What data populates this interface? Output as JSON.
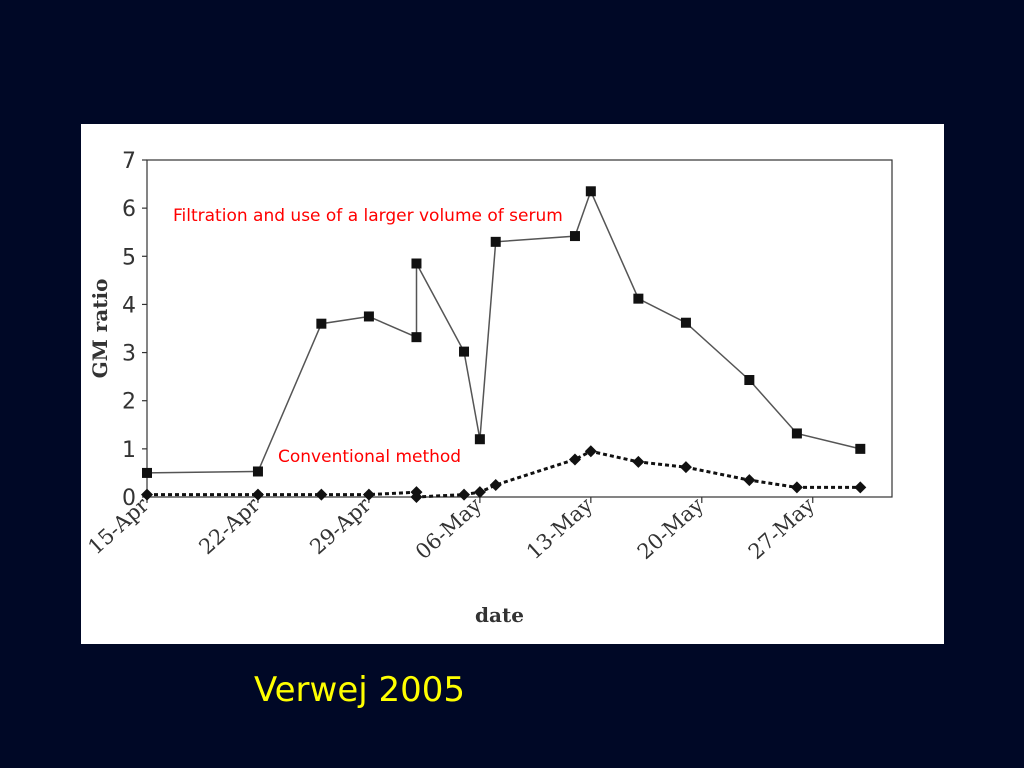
{
  "caption": "Verwej 2005",
  "colors": {
    "background": "#000826",
    "panel": "#ffffff",
    "caption": "#ffff00",
    "annotation": "#ff0000",
    "series_line": "#555555",
    "marker": "#111111"
  },
  "chart_data": {
    "type": "line",
    "xlabel": "date",
    "ylabel": "GM ratio",
    "x_type": "date",
    "xlim": [
      "2005-04-15",
      "2005-06-01"
    ],
    "ylim": [
      0,
      7
    ],
    "yticks": [
      "0",
      "1",
      "2",
      "3",
      "4",
      "5",
      "6",
      "7"
    ],
    "xticks": [
      {
        "date": "2005-04-15",
        "label": "15-Apr"
      },
      {
        "date": "2005-04-22",
        "label": "22-Apr"
      },
      {
        "date": "2005-04-29",
        "label": "29-Apr"
      },
      {
        "date": "2005-05-06",
        "label": "06-May"
      },
      {
        "date": "2005-05-13",
        "label": "13-May"
      },
      {
        "date": "2005-05-20",
        "label": "20-May"
      },
      {
        "date": "2005-05-27",
        "label": "27-May"
      }
    ],
    "grid": false,
    "legend": "none",
    "series": [
      {
        "marker": "square",
        "line_style": "solid",
        "label": "Filtration and use of a larger volume of serum",
        "points": [
          {
            "x": "2005-04-15",
            "y": 0.5
          },
          {
            "x": "2005-04-22",
            "y": 0.53
          },
          {
            "x": "2005-04-26",
            "y": 3.6
          },
          {
            "x": "2005-04-29",
            "y": 3.75
          },
          {
            "x": "2005-05-02",
            "y": 3.32
          },
          {
            "x": "2005-05-02",
            "y": 4.85
          },
          {
            "x": "2005-05-05",
            "y": 3.02
          },
          {
            "x": "2005-05-06",
            "y": 1.2
          },
          {
            "x": "2005-05-07",
            "y": 5.3
          },
          {
            "x": "2005-05-12",
            "y": 5.42
          },
          {
            "x": "2005-05-13",
            "y": 6.35
          },
          {
            "x": "2005-05-16",
            "y": 4.12
          },
          {
            "x": "2005-05-19",
            "y": 3.62
          },
          {
            "x": "2005-05-23",
            "y": 2.43
          },
          {
            "x": "2005-05-26",
            "y": 1.32
          },
          {
            "x": "2005-05-30",
            "y": 1.0
          }
        ]
      },
      {
        "marker": "diamond",
        "line_style": "dotted",
        "label": "Conventional method",
        "points": [
          {
            "x": "2005-04-15",
            "y": 0.05
          },
          {
            "x": "2005-04-22",
            "y": 0.05
          },
          {
            "x": "2005-04-26",
            "y": 0.05
          },
          {
            "x": "2005-04-29",
            "y": 0.05
          },
          {
            "x": "2005-05-02",
            "y": 0.1
          },
          {
            "x": "2005-05-02",
            "y": 0.0
          },
          {
            "x": "2005-05-05",
            "y": 0.05
          },
          {
            "x": "2005-05-06",
            "y": 0.1
          },
          {
            "x": "2005-05-07",
            "y": 0.25
          },
          {
            "x": "2005-05-12",
            "y": 0.78
          },
          {
            "x": "2005-05-13",
            "y": 0.95
          },
          {
            "x": "2005-05-16",
            "y": 0.73
          },
          {
            "x": "2005-05-19",
            "y": 0.62
          },
          {
            "x": "2005-05-23",
            "y": 0.35
          },
          {
            "x": "2005-05-26",
            "y": 0.2
          },
          {
            "x": "2005-05-30",
            "y": 0.2
          }
        ]
      }
    ]
  }
}
